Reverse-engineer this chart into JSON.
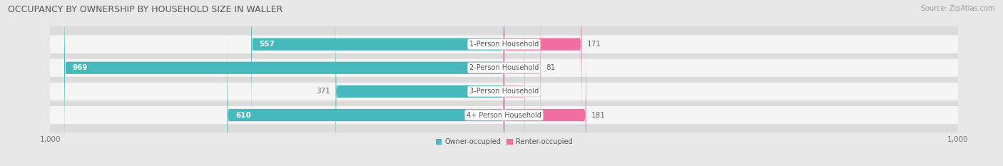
{
  "title": "OCCUPANCY BY OWNERSHIP BY HOUSEHOLD SIZE IN WALLER",
  "source": "Source: ZipAtlas.com",
  "categories": [
    "1-Person Household",
    "2-Person Household",
    "3-Person Household",
    "4+ Person Household"
  ],
  "owner_values": [
    557,
    969,
    371,
    610
  ],
  "renter_values": [
    171,
    81,
    46,
    181
  ],
  "owner_color": "#47B8BC",
  "renter_color": "#F06EA0",
  "renter_color_light": "#F4A8C5",
  "label_color_on_bar": "#ffffff",
  "label_color_off_bar": "#666666",
  "figure_bg": "#e8e8e8",
  "row_bg": "#f5f5f5",
  "row_bg_shadow": "#dcdcdc",
  "axis_max": 1000,
  "bar_height": 0.52,
  "legend_owner": "Owner-occupied",
  "legend_renter": "Renter-occupied",
  "title_fontsize": 9,
  "source_fontsize": 7,
  "label_fontsize": 7.5,
  "cat_fontsize": 7,
  "tick_fontsize": 7.5
}
